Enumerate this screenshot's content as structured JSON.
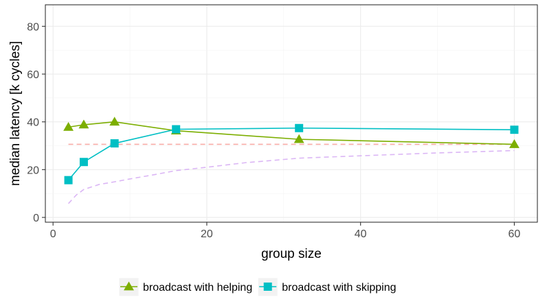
{
  "chart_data": {
    "type": "line",
    "xlabel": "group size",
    "ylabel": "median latency [k cycles]",
    "xlim": [
      -1,
      63
    ],
    "ylim": [
      -2,
      89
    ],
    "x_ticks": [
      0,
      20,
      40,
      60
    ],
    "y_ticks": [
      0,
      20,
      40,
      60,
      80
    ],
    "grid": true,
    "legend_position": "bottom",
    "series": [
      {
        "name": "broadcast with helping",
        "color": "#7cae00",
        "marker": "triangle",
        "x": [
          2,
          4,
          8,
          16,
          32,
          60
        ],
        "y": [
          37.8,
          38.8,
          40.0,
          36.3,
          32.7,
          30.6
        ]
      },
      {
        "name": "broadcast with skipping",
        "color": "#00bfc4",
        "marker": "square",
        "x": [
          2,
          4,
          8,
          16,
          32,
          60
        ],
        "y": [
          15.6,
          23.2,
          31.0,
          36.9,
          37.4,
          36.7
        ]
      }
    ],
    "reference_lines": [
      {
        "color": "#f8aaa6",
        "style": "dashed",
        "x": [
          2,
          60
        ],
        "y": [
          30.6,
          30.6
        ]
      },
      {
        "color": "#dbb6f5",
        "style": "dashed",
        "x": [
          2,
          3,
          4,
          6,
          8,
          10,
          13,
          16,
          20,
          25,
          32,
          40,
          50,
          60
        ],
        "y": [
          5.8,
          9.3,
          11.7,
          13.8,
          14.9,
          16.1,
          17.8,
          19.6,
          21.0,
          22.9,
          24.8,
          25.8,
          27.0,
          28.0
        ]
      }
    ]
  }
}
